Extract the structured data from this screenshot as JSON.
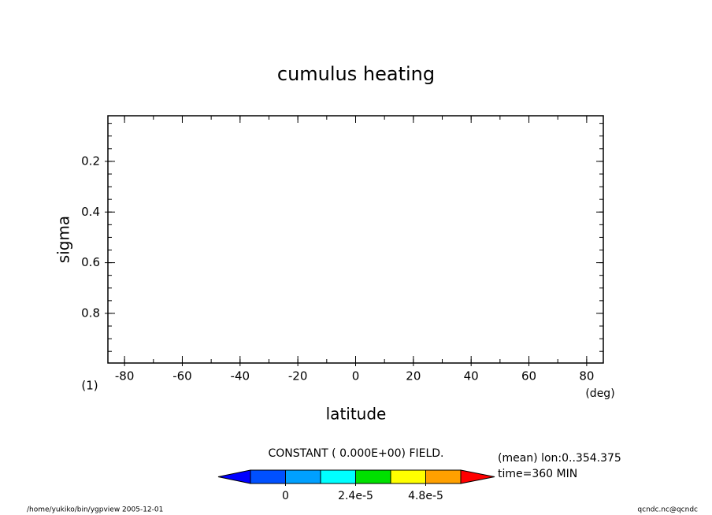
{
  "chart_data": {
    "type": "contour",
    "title": "cumulus heating",
    "xlabel": "latitude",
    "xunit": "(deg)",
    "ylabel": "sigma",
    "panel_label": "(1)",
    "xlim": [
      -85.76,
      85.76
    ],
    "xticks": [
      -80,
      -60,
      -40,
      -20,
      0,
      20,
      40,
      60,
      80
    ],
    "xminorticks": [
      -80,
      -70,
      -60,
      -50,
      -40,
      -30,
      -20,
      -10,
      0,
      10,
      20,
      30,
      40,
      50,
      60,
      70,
      80
    ],
    "ylim": [
      0.02,
      0.996
    ],
    "y_inverted": true,
    "yticks": [
      0.2,
      0.4,
      0.6,
      0.8
    ],
    "yminorticks": [
      0.05,
      0.1,
      0.15,
      0.2,
      0.25,
      0.3,
      0.35,
      0.4,
      0.45,
      0.5,
      0.55,
      0.6,
      0.65,
      0.7,
      0.75,
      0.8,
      0.85,
      0.9,
      0.95
    ],
    "field_note": "CONSTANT ( 0.000E+00) FIELD.",
    "info": [
      "(mean) lon:0..354.375",
      "time=360 MIN"
    ],
    "colorbar": {
      "levels": [
        -1.2e-05,
        0,
        1.2e-05,
        2.4e-05,
        3.6e-05,
        4.8e-05,
        6e-05
      ],
      "colors": [
        "#0000ff",
        "#0050ff",
        "#00a0ff",
        "#00ffff",
        "#00e000",
        "#ffff00",
        "#ffa000",
        "#ff0000"
      ],
      "ticks": [
        0,
        {
          "value": 2.4e-05,
          "label": "2.4e-5"
        },
        {
          "value": 4.8e-05,
          "label": "4.8e-5"
        }
      ]
    },
    "footer_left": "/home/yukiko/bin/ygpview  2005-12-01",
    "footer_right": "qcndc.nc@qcndc"
  }
}
